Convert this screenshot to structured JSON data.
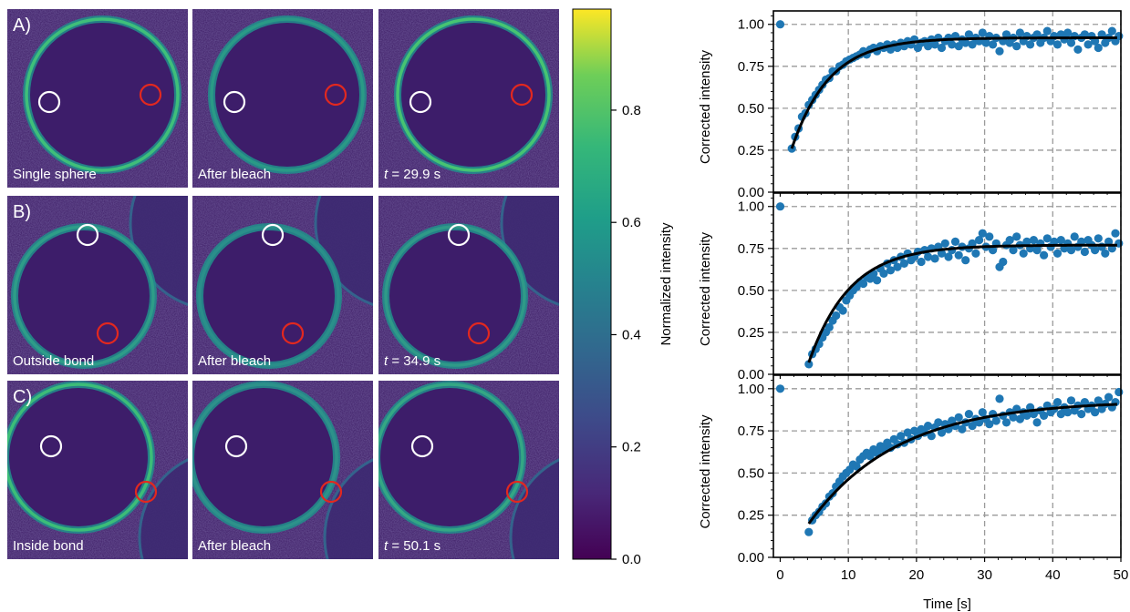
{
  "rows": [
    {
      "letter": "A)",
      "panels": [
        {
          "label": "Single sphere",
          "white_circle": "left",
          "red_circle": "right"
        },
        {
          "label": "After bleach"
        },
        {
          "label_t": "t",
          "label_rest": " = 29.9 s"
        }
      ]
    },
    {
      "letter": "B)",
      "panels": [
        {
          "label": "Outside bond"
        },
        {
          "label": "After bleach"
        },
        {
          "label_t": "t",
          "label_rest": " = 34.9 s"
        }
      ]
    },
    {
      "letter": "C)",
      "panels": [
        {
          "label": "Inside bond"
        },
        {
          "label": "After bleach"
        },
        {
          "label_t": "t",
          "label_rest": " = 50.1 s"
        }
      ]
    }
  ],
  "colorbar": {
    "label": "Normalized intensity",
    "ticks": [
      "0.0",
      "0.2",
      "0.4",
      "0.6",
      "0.8"
    ],
    "range": [
      0,
      0.98
    ],
    "colormap": "viridis"
  },
  "colors": {
    "point": "#1f77b4",
    "fit": "#000000",
    "white_marker": "#ffffff",
    "red_marker": "#e2281f"
  },
  "chart_data": [
    {
      "type": "scatter",
      "ylabel": "Corrected intensity",
      "xlim": [
        -1,
        50
      ],
      "ylim": [
        0,
        1.08
      ],
      "xticks": [
        0,
        10,
        20,
        30,
        40,
        50
      ],
      "yticks": [
        "0.00",
        "0.25",
        "0.50",
        "0.75",
        "1.00"
      ],
      "grid": true,
      "fit": {
        "plateau": 0.92,
        "start": 0.26,
        "t0": 1.7,
        "tau": 5.5
      },
      "points": [
        [
          0,
          1.0
        ],
        [
          1.7,
          0.26
        ],
        [
          2.2,
          0.33
        ],
        [
          2.7,
          0.38
        ],
        [
          3.2,
          0.45
        ],
        [
          3.7,
          0.47
        ],
        [
          4.2,
          0.52
        ],
        [
          4.7,
          0.55
        ],
        [
          5.2,
          0.58
        ],
        [
          5.7,
          0.61
        ],
        [
          6.2,
          0.64
        ],
        [
          6.7,
          0.67
        ],
        [
          7.2,
          0.68
        ],
        [
          7.7,
          0.72
        ],
        [
          8.2,
          0.72
        ],
        [
          8.7,
          0.75
        ],
        [
          9.2,
          0.76
        ],
        [
          9.7,
          0.78
        ],
        [
          10.2,
          0.79
        ],
        [
          10.7,
          0.8
        ],
        [
          11.2,
          0.81
        ],
        [
          11.7,
          0.82
        ],
        [
          12.2,
          0.84
        ],
        [
          12.7,
          0.82
        ],
        [
          13.2,
          0.85
        ],
        [
          13.7,
          0.86
        ],
        [
          14.2,
          0.84
        ],
        [
          14.7,
          0.87
        ],
        [
          15.2,
          0.86
        ],
        [
          15.7,
          0.88
        ],
        [
          16.2,
          0.85
        ],
        [
          16.7,
          0.88
        ],
        [
          17.2,
          0.86
        ],
        [
          17.7,
          0.89
        ],
        [
          18.2,
          0.87
        ],
        [
          18.7,
          0.9
        ],
        [
          19.2,
          0.88
        ],
        [
          19.7,
          0.91
        ],
        [
          20.2,
          0.86
        ],
        [
          20.7,
          0.89
        ],
        [
          21.2,
          0.9
        ],
        [
          21.7,
          0.87
        ],
        [
          22.2,
          0.91
        ],
        [
          22.7,
          0.88
        ],
        [
          23.2,
          0.92
        ],
        [
          23.7,
          0.86
        ],
        [
          24.2,
          0.9
        ],
        [
          24.7,
          0.92
        ],
        [
          25.2,
          0.88
        ],
        [
          25.7,
          0.93
        ],
        [
          26.2,
          0.87
        ],
        [
          26.7,
          0.91
        ],
        [
          27.2,
          0.89
        ],
        [
          27.7,
          0.94
        ],
        [
          28.2,
          0.88
        ],
        [
          28.7,
          0.92
        ],
        [
          29.2,
          0.9
        ],
        [
          29.7,
          0.95
        ],
        [
          30.2,
          0.89
        ],
        [
          30.7,
          0.93
        ],
        [
          31.2,
          0.88
        ],
        [
          31.7,
          0.92
        ],
        [
          32.2,
          0.84
        ],
        [
          32.7,
          0.9
        ],
        [
          33.2,
          0.94
        ],
        [
          33.7,
          0.89
        ],
        [
          34.2,
          0.92
        ],
        [
          34.7,
          0.87
        ],
        [
          35.2,
          0.95
        ],
        [
          35.7,
          0.9
        ],
        [
          36.2,
          0.93
        ],
        [
          36.7,
          0.88
        ],
        [
          37.2,
          0.92
        ],
        [
          37.7,
          0.94
        ],
        [
          38.2,
          0.89
        ],
        [
          38.7,
          0.92
        ],
        [
          39.2,
          0.96
        ],
        [
          39.7,
          0.9
        ],
        [
          40.2,
          0.93
        ],
        [
          40.7,
          0.88
        ],
        [
          41.2,
          0.94
        ],
        [
          41.7,
          0.91
        ],
        [
          42.2,
          0.95
        ],
        [
          42.7,
          0.89
        ],
        [
          43.2,
          0.93
        ],
        [
          43.7,
          0.85
        ],
        [
          44.2,
          0.92
        ],
        [
          44.7,
          0.94
        ],
        [
          45.2,
          0.88
        ],
        [
          45.7,
          0.93
        ],
        [
          46.2,
          0.9
        ],
        [
          46.7,
          0.86
        ],
        [
          47.2,
          0.94
        ],
        [
          47.7,
          0.89
        ],
        [
          48.2,
          0.92
        ],
        [
          48.7,
          0.96
        ],
        [
          49.2,
          0.9
        ],
        [
          49.7,
          0.93
        ]
      ]
    },
    {
      "type": "scatter",
      "ylabel": "Corrected intensity",
      "xlim": [
        -1,
        50
      ],
      "ylim": [
        0,
        1.08
      ],
      "xticks": [
        0,
        10,
        20,
        30,
        40,
        50
      ],
      "yticks": [
        "0.00",
        "0.25",
        "0.50",
        "0.75",
        "1.00"
      ],
      "grid": true,
      "fit": {
        "plateau": 0.77,
        "start": 0.07,
        "t0": 4.2,
        "tau": 6.0
      },
      "points": [
        [
          0,
          1.0
        ],
        [
          4.2,
          0.06
        ],
        [
          4.7,
          0.12
        ],
        [
          5.2,
          0.15
        ],
        [
          5.7,
          0.18
        ],
        [
          6.2,
          0.22
        ],
        [
          6.7,
          0.25
        ],
        [
          7.2,
          0.28
        ],
        [
          7.7,
          0.32
        ],
        [
          8.2,
          0.35
        ],
        [
          8.7,
          0.4
        ],
        [
          9.2,
          0.38
        ],
        [
          9.7,
          0.44
        ],
        [
          10.2,
          0.47
        ],
        [
          10.7,
          0.5
        ],
        [
          11.2,
          0.52
        ],
        [
          11.7,
          0.55
        ],
        [
          12.2,
          0.54
        ],
        [
          12.7,
          0.58
        ],
        [
          13.2,
          0.57
        ],
        [
          13.7,
          0.6
        ],
        [
          14.2,
          0.56
        ],
        [
          14.7,
          0.63
        ],
        [
          15.2,
          0.6
        ],
        [
          15.7,
          0.66
        ],
        [
          16.2,
          0.62
        ],
        [
          16.7,
          0.68
        ],
        [
          17.2,
          0.64
        ],
        [
          17.7,
          0.7
        ],
        [
          18.2,
          0.66
        ],
        [
          18.7,
          0.72
        ],
        [
          19.2,
          0.68
        ],
        [
          19.7,
          0.7
        ],
        [
          20.2,
          0.73
        ],
        [
          20.7,
          0.67
        ],
        [
          21.2,
          0.74
        ],
        [
          21.7,
          0.7
        ],
        [
          22.2,
          0.75
        ],
        [
          22.7,
          0.69
        ],
        [
          23.2,
          0.76
        ],
        [
          23.7,
          0.72
        ],
        [
          24.2,
          0.78
        ],
        [
          24.7,
          0.7
        ],
        [
          25.2,
          0.74
        ],
        [
          25.7,
          0.79
        ],
        [
          26.2,
          0.71
        ],
        [
          26.7,
          0.76
        ],
        [
          27.2,
          0.68
        ],
        [
          27.7,
          0.75
        ],
        [
          28.2,
          0.78
        ],
        [
          28.7,
          0.72
        ],
        [
          29.2,
          0.8
        ],
        [
          29.7,
          0.84
        ],
        [
          30.2,
          0.76
        ],
        [
          30.7,
          0.82
        ],
        [
          31.2,
          0.74
        ],
        [
          31.7,
          0.78
        ],
        [
          32.2,
          0.64
        ],
        [
          32.7,
          0.67
        ],
        [
          33.2,
          0.77
        ],
        [
          33.7,
          0.8
        ],
        [
          34.2,
          0.74
        ],
        [
          34.7,
          0.82
        ],
        [
          35.2,
          0.77
        ],
        [
          35.7,
          0.72
        ],
        [
          36.2,
          0.79
        ],
        [
          36.7,
          0.75
        ],
        [
          37.2,
          0.8
        ],
        [
          37.7,
          0.74
        ],
        [
          38.2,
          0.78
        ],
        [
          38.7,
          0.71
        ],
        [
          39.2,
          0.81
        ],
        [
          39.7,
          0.76
        ],
        [
          40.2,
          0.79
        ],
        [
          40.7,
          0.72
        ],
        [
          41.2,
          0.8
        ],
        [
          41.7,
          0.75
        ],
        [
          42.2,
          0.78
        ],
        [
          42.7,
          0.74
        ],
        [
          43.2,
          0.82
        ],
        [
          43.7,
          0.76
        ],
        [
          44.2,
          0.79
        ],
        [
          44.7,
          0.73
        ],
        [
          45.2,
          0.8
        ],
        [
          45.7,
          0.77
        ],
        [
          46.2,
          0.74
        ],
        [
          46.7,
          0.81
        ],
        [
          47.2,
          0.76
        ],
        [
          47.7,
          0.72
        ],
        [
          48.2,
          0.79
        ],
        [
          48.7,
          0.75
        ],
        [
          49.2,
          0.84
        ],
        [
          49.7,
          0.78
        ]
      ]
    },
    {
      "type": "scatter",
      "ylabel": "Corrected intensity",
      "xlabel": "Time [s]",
      "xlim": [
        -1,
        50
      ],
      "ylim": [
        0,
        1.08
      ],
      "xticks": [
        0,
        10,
        20,
        30,
        40,
        50
      ],
      "yticks": [
        "0.00",
        "0.25",
        "0.50",
        "0.75",
        "1.00"
      ],
      "grid": true,
      "fit": {
        "plateau": 0.93,
        "start": 0.2,
        "t0": 4.2,
        "tau": 13.0
      },
      "points": [
        [
          0,
          1.0
        ],
        [
          4.2,
          0.15
        ],
        [
          4.7,
          0.22
        ],
        [
          5.2,
          0.25
        ],
        [
          5.7,
          0.27
        ],
        [
          6.2,
          0.3
        ],
        [
          6.7,
          0.32
        ],
        [
          7.2,
          0.36
        ],
        [
          7.7,
          0.38
        ],
        [
          8.2,
          0.42
        ],
        [
          8.7,
          0.45
        ],
        [
          9.2,
          0.48
        ],
        [
          9.7,
          0.5
        ],
        [
          10.2,
          0.52
        ],
        [
          10.7,
          0.55
        ],
        [
          11.2,
          0.54
        ],
        [
          11.7,
          0.58
        ],
        [
          12.2,
          0.6
        ],
        [
          12.7,
          0.62
        ],
        [
          13.2,
          0.6
        ],
        [
          13.7,
          0.64
        ],
        [
          14.2,
          0.62
        ],
        [
          14.7,
          0.66
        ],
        [
          15.2,
          0.64
        ],
        [
          15.7,
          0.68
        ],
        [
          16.2,
          0.65
        ],
        [
          16.7,
          0.7
        ],
        [
          17.2,
          0.67
        ],
        [
          17.7,
          0.72
        ],
        [
          18.2,
          0.68
        ],
        [
          18.7,
          0.74
        ],
        [
          19.2,
          0.7
        ],
        [
          19.7,
          0.75
        ],
        [
          20.2,
          0.72
        ],
        [
          20.7,
          0.76
        ],
        [
          21.2,
          0.74
        ],
        [
          21.7,
          0.78
        ],
        [
          22.2,
          0.72
        ],
        [
          22.7,
          0.77
        ],
        [
          23.2,
          0.8
        ],
        [
          23.7,
          0.74
        ],
        [
          24.2,
          0.79
        ],
        [
          24.7,
          0.76
        ],
        [
          25.2,
          0.81
        ],
        [
          25.7,
          0.78
        ],
        [
          26.2,
          0.83
        ],
        [
          26.7,
          0.76
        ],
        [
          27.2,
          0.8
        ],
        [
          27.7,
          0.85
        ],
        [
          28.2,
          0.78
        ],
        [
          28.7,
          0.82
        ],
        [
          29.2,
          0.8
        ],
        [
          29.7,
          0.86
        ],
        [
          30.2,
          0.82
        ],
        [
          30.7,
          0.79
        ],
        [
          31.2,
          0.85
        ],
        [
          31.7,
          0.81
        ],
        [
          32.2,
          0.94
        ],
        [
          32.7,
          0.84
        ],
        [
          33.2,
          0.8
        ],
        [
          33.7,
          0.86
        ],
        [
          34.2,
          0.83
        ],
        [
          34.7,
          0.88
        ],
        [
          35.2,
          0.82
        ],
        [
          35.7,
          0.86
        ],
        [
          36.2,
          0.84
        ],
        [
          36.7,
          0.89
        ],
        [
          37.2,
          0.85
        ],
        [
          37.7,
          0.8
        ],
        [
          38.2,
          0.87
        ],
        [
          38.7,
          0.84
        ],
        [
          39.2,
          0.9
        ],
        [
          39.7,
          0.86
        ],
        [
          40.2,
          0.88
        ],
        [
          40.7,
          0.92
        ],
        [
          41.2,
          0.85
        ],
        [
          41.7,
          0.89
        ],
        [
          42.2,
          0.86
        ],
        [
          42.7,
          0.93
        ],
        [
          43.2,
          0.87
        ],
        [
          43.7,
          0.9
        ],
        [
          44.2,
          0.85
        ],
        [
          44.7,
          0.92
        ],
        [
          45.2,
          0.88
        ],
        [
          45.7,
          0.9
        ],
        [
          46.2,
          0.86
        ],
        [
          46.7,
          0.93
        ],
        [
          47.2,
          0.88
        ],
        [
          47.7,
          0.91
        ],
        [
          48.2,
          0.95
        ],
        [
          48.7,
          0.89
        ],
        [
          49.2,
          0.92
        ],
        [
          49.7,
          0.98
        ]
      ]
    }
  ]
}
